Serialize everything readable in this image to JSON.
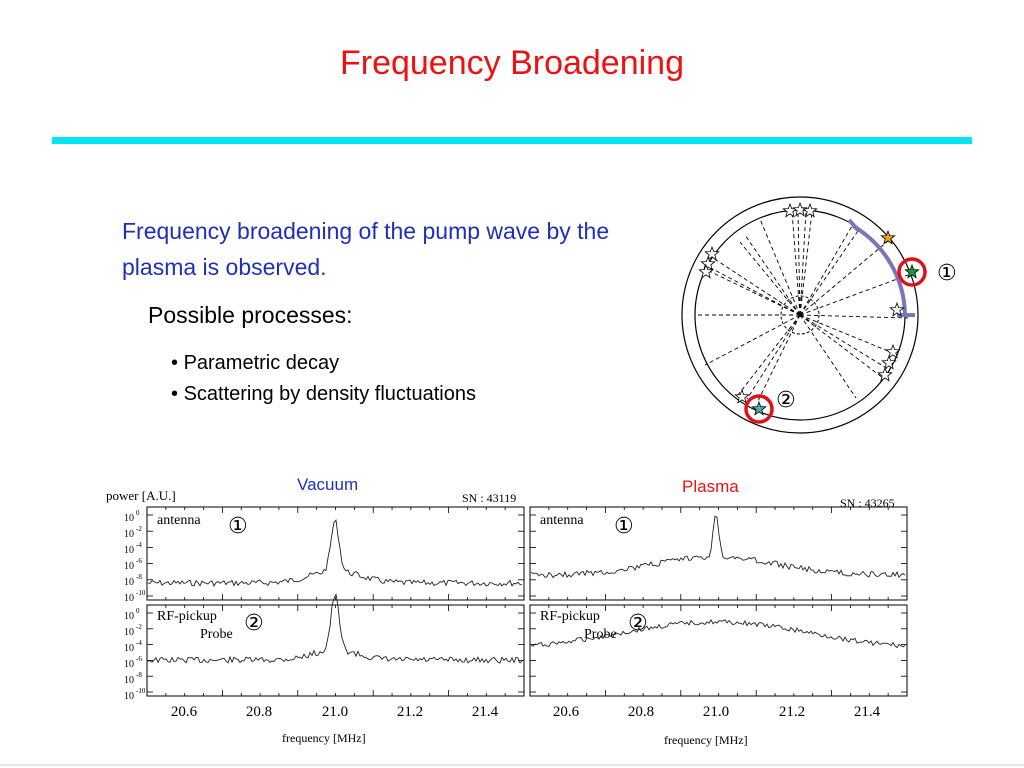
{
  "slide": {
    "title": "Frequency Broadening",
    "intro": "Frequency broadening of the pump wave by the plasma is observed.",
    "processes_heading": "Possible processes:",
    "processes": [
      "Parametric decay",
      "Scattering by density fluctuations"
    ]
  },
  "diagram": {
    "marker_1": "①",
    "marker_2": "②",
    "colors": {
      "arc": "#7878b8",
      "marker_circle": "#e0101a",
      "star_green": "#1a9a3a",
      "star_orange": "#f0a020"
    }
  },
  "spectra": {
    "y_axis_label": "power  [A.U.]",
    "x_axis_label": "frequency  [MHz]",
    "x_ticks": [
      "20.6",
      "20.8",
      "21.0",
      "21.2",
      "21.4"
    ],
    "y_ticks": [
      "10",
      "10",
      "10",
      "10",
      "10",
      "10"
    ],
    "y_exponents": [
      "0",
      "-2",
      "-4",
      "-6",
      "-8",
      "-10"
    ],
    "panels": [
      {
        "title": "Vacuum",
        "shot": "SN : 43119",
        "rows": [
          {
            "label": "antenna",
            "marker": "①"
          },
          {
            "label_line1": "RF-pickup",
            "label_line2": "Probe",
            "marker": "②"
          }
        ]
      },
      {
        "title": "Plasma",
        "shot": "SN : 43265",
        "rows": [
          {
            "label": "antenna",
            "marker": "①"
          },
          {
            "label_line1": "RF-pickup",
            "label_line2": "Probe",
            "marker": "②"
          }
        ]
      }
    ]
  }
}
